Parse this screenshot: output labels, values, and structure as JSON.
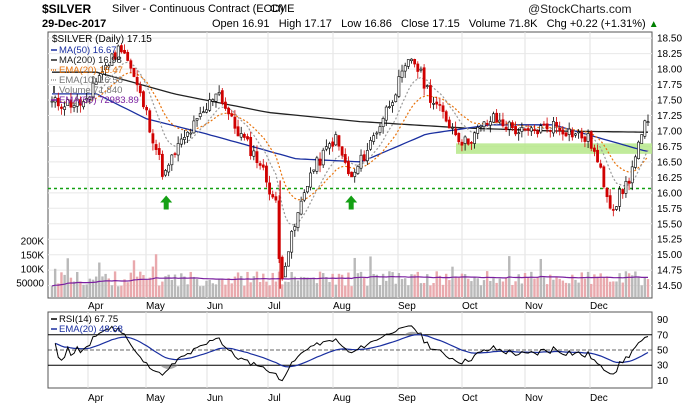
{
  "header": {
    "symbol": "$SILVER",
    "description": "Silver - Continuous Contract (EOD)",
    "exchange": "CME",
    "brand": "@StockCharts.com",
    "date": "29-Dec-2017",
    "open_label": "Open",
    "open": "16.91",
    "high_label": "High",
    "high": "17.17",
    "low_label": "Low",
    "low": "16.86",
    "close_label": "Close",
    "close": "17.15",
    "volume_label": "Volume",
    "volume": "71.8K",
    "chg_label": "Chg",
    "chg": "+0.22 (+1.31%)",
    "chg_arrow": "▲",
    "up_color": "#008000"
  },
  "chart_data": [
    {
      "type": "candlestick",
      "title": "$SILVER (Daily) 17.15",
      "legend": [
        {
          "label": "MA(50) 16.67",
          "color": "#1a2fa0",
          "style": "solid"
        },
        {
          "label": "MA(200) 16.98",
          "color": "#222222",
          "style": "solid"
        },
        {
          "label": "EMA(20) 16.47",
          "color": "#e8730c",
          "style": "dotted"
        },
        {
          "label": "EMA(10) 16.58",
          "color": "#999999",
          "style": "dotted"
        },
        {
          "label": "Volume 71,840",
          "color": "#999999",
          "style": "bar"
        },
        {
          "label": "EMA(50) 72983.89",
          "color": "#7a1fa0",
          "style": "solid"
        }
      ],
      "ylim": [
        14.3,
        18.6
      ],
      "yticks": [
        "18.50",
        "18.25",
        "18.00",
        "17.75",
        "17.50",
        "17.25",
        "17.00",
        "16.75",
        "16.50",
        "16.25",
        "16.00",
        "15.75",
        "15.50",
        "15.25",
        "15.00",
        "14.75",
        "14.50"
      ],
      "volume_ticks": [
        "200K",
        "150K",
        "100K",
        "50000"
      ],
      "xlabels": [
        "Apr",
        "May",
        "Jun",
        "Jul",
        "Aug",
        "Sep",
        "Oct",
        "Nov",
        "Dec"
      ],
      "support_level": 16.07,
      "resistance_zone": [
        16.63,
        16.8
      ],
      "signal_arrows": [
        "May",
        "Aug"
      ],
      "price_path": [
        {
          "date": "Mar-29",
          "price": 17.45
        },
        {
          "date": "Apr-03",
          "price": 17.75
        },
        {
          "date": "Apr-18",
          "price": 18.4
        },
        {
          "date": "May-01",
          "price": 17.3
        },
        {
          "date": "May-10",
          "price": 16.25
        },
        {
          "date": "May-16",
          "price": 16.7
        },
        {
          "date": "May-31",
          "price": 17.35
        },
        {
          "date": "Jun-06",
          "price": 17.7
        },
        {
          "date": "Jun-14",
          "price": 17.1
        },
        {
          "date": "Jun-27",
          "price": 16.5
        },
        {
          "date": "Jul-05",
          "price": 15.8
        },
        {
          "date": "Jul-07",
          "price": 14.6
        },
        {
          "date": "Jul-21",
          "price": 16.25
        },
        {
          "date": "Aug-02",
          "price": 16.9
        },
        {
          "date": "Aug-10",
          "price": 16.2
        },
        {
          "date": "Aug-24",
          "price": 17.1
        },
        {
          "date": "Sep-01",
          "price": 17.75
        },
        {
          "date": "Sep-08",
          "price": 18.2
        },
        {
          "date": "Sep-18",
          "price": 17.5
        },
        {
          "date": "Oct-02",
          "price": 16.8
        },
        {
          "date": "Oct-16",
          "price": 17.2
        },
        {
          "date": "Nov-01",
          "price": 16.95
        },
        {
          "date": "Nov-15",
          "price": 17.1
        },
        {
          "date": "Dec-01",
          "price": 16.85
        },
        {
          "date": "Dec-12",
          "price": 15.75
        },
        {
          "date": "Dec-20",
          "price": 16.2
        },
        {
          "date": "Dec-29",
          "price": 17.15
        }
      ],
      "ma200_path": [
        {
          "date": "Mar-29",
          "price": 17.95
        },
        {
          "date": "May-15",
          "price": 17.6
        },
        {
          "date": "Jul-01",
          "price": 17.3
        },
        {
          "date": "Aug-15",
          "price": 17.15
        },
        {
          "date": "Oct-01",
          "price": 17.05
        },
        {
          "date": "Nov-15",
          "price": 17.0
        },
        {
          "date": "Dec-29",
          "price": 16.98
        }
      ],
      "ma50_path": [
        {
          "date": "Mar-29",
          "price": 17.6
        },
        {
          "date": "May-01",
          "price": 17.2
        },
        {
          "date": "Jun-01",
          "price": 16.95
        },
        {
          "date": "Jul-15",
          "price": 16.55
        },
        {
          "date": "Aug-15",
          "price": 16.5
        },
        {
          "date": "Sep-15",
          "price": 16.95
        },
        {
          "date": "Oct-15",
          "price": 17.1
        },
        {
          "date": "Nov-15",
          "price": 17.1
        },
        {
          "date": "Dec-29",
          "price": 16.67
        }
      ]
    },
    {
      "type": "line",
      "title": "RSI(14) 67.75",
      "legend": [
        {
          "label": "RSI(14) 67.75",
          "color": "#000000"
        },
        {
          "label": "EMA(20) 48.68",
          "color": "#1a2fa0"
        }
      ],
      "ylim": [
        0,
        100
      ],
      "yticks": [
        "90",
        "70",
        "50",
        "30",
        "10"
      ],
      "overbought": 70,
      "oversold": 30,
      "midline": 50
    }
  ]
}
